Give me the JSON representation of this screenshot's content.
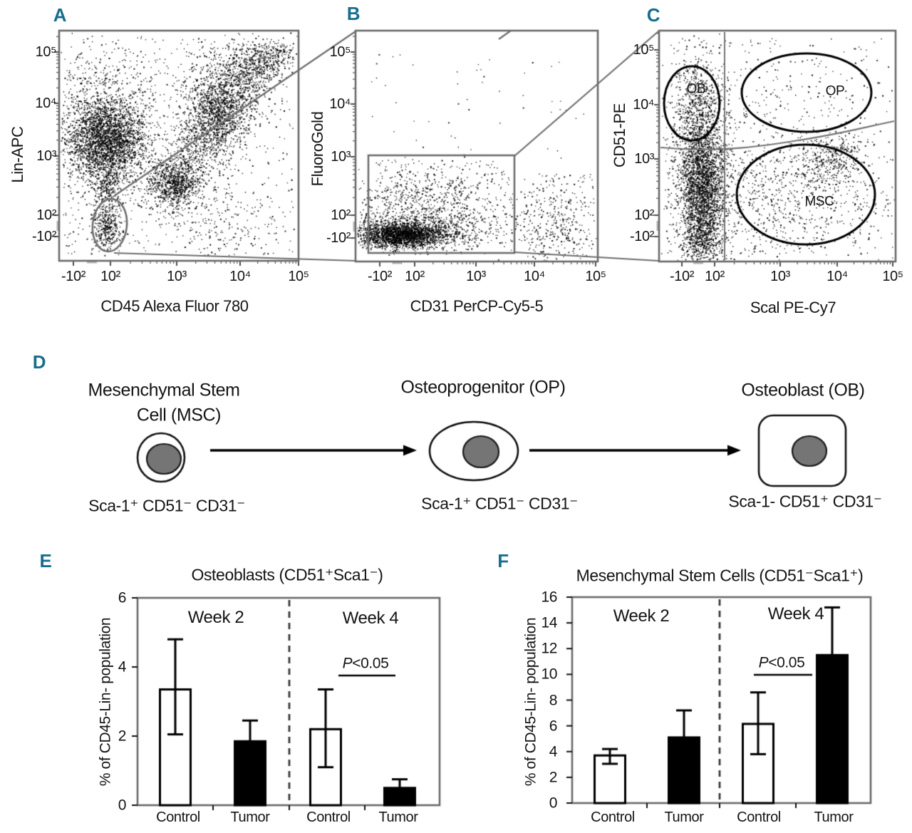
{
  "panel_letters": [
    "A",
    "B",
    "C",
    "D",
    "E",
    "F"
  ],
  "accent_color": "#176e8e",
  "chart_data": [
    {
      "panel": "A",
      "type": "scatter",
      "x_axis": "CD45 Alexa Fluor 780",
      "y_axis": "Lin-APC",
      "x_ticks": [
        "-10²",
        "10²",
        "10³",
        "10⁴",
        "10⁵"
      ],
      "y_ticks": [
        "10⁵",
        "10⁴",
        "10³",
        "10²",
        "-10²"
      ],
      "gate": "sort-gate ellipse on CD45- Lin- cells (lower left)",
      "clusters": [
        {
          "kind": "gauss",
          "n": 2600,
          "cx": 0.199,
          "cy": 0.529,
          "sx": 0.077,
          "sy": 0.087
        },
        {
          "kind": "gauss",
          "n": 700,
          "cx": 0.199,
          "cy": 0.529,
          "sx": 0.155,
          "sy": 0.17
        },
        {
          "kind": "band",
          "n": 280,
          "x0": 0.193,
          "y0": 0.396,
          "x1": 0.202,
          "y1": 0.179,
          "w": 0.03
        },
        {
          "kind": "gauss",
          "n": 260,
          "cx": 0.16,
          "cy": 0.75,
          "sx": 0.12,
          "sy": 0.12
        },
        {
          "kind": "band",
          "n": 1000,
          "x0": 0.432,
          "y0": 0.288,
          "x1": 0.78,
          "y1": 0.814,
          "w": 0.055
        },
        {
          "kind": "gauss",
          "n": 700,
          "cx": 0.488,
          "cy": 0.337,
          "sx": 0.054,
          "sy": 0.05
        },
        {
          "kind": "gauss",
          "n": 1200,
          "cx": 0.661,
          "cy": 0.669,
          "sx": 0.077,
          "sy": 0.105
        },
        {
          "kind": "gauss",
          "n": 500,
          "cx": 0.81,
          "cy": 0.839,
          "sx": 0.071,
          "sy": 0.056
        },
        {
          "kind": "band",
          "n": 160,
          "x0": 0.848,
          "y0": 0.861,
          "x1": 0.952,
          "y1": 0.923,
          "w": 0.03
        },
        {
          "kind": "gauss",
          "n": 300,
          "cx": 0.199,
          "cy": 0.133,
          "sx": 0.03,
          "sy": 0.043
        },
        {
          "kind": "uniform",
          "n": 650,
          "x0": 0.02,
          "y0": 0.03,
          "x1": 0.98,
          "y1": 0.97
        },
        {
          "kind": "gauss",
          "n": 180,
          "cx": 0.685,
          "cy": 0.164,
          "sx": 0.134,
          "sy": 0.093
        }
      ]
    },
    {
      "panel": "B",
      "type": "scatter",
      "x_axis": "CD31 PerCP-Cy5-5",
      "y_axis": "FluoroGold",
      "x_ticks": [
        "-10²",
        "10²",
        "10³",
        "10⁴",
        "10⁵"
      ],
      "y_ticks": [
        "10⁵",
        "10⁴",
        "10³",
        "10²",
        "-10²"
      ],
      "gate": "rectangle gate on CD31- FluoroGold-low cells",
      "clusters": [
        {
          "kind": "gauss",
          "n": 1800,
          "cx": 0.179,
          "cy": 0.114,
          "sx": 0.082,
          "sy": 0.025
        },
        {
          "kind": "gauss",
          "n": 900,
          "cx": 0.253,
          "cy": 0.13,
          "sx": 0.162,
          "sy": 0.04
        },
        {
          "kind": "gauss",
          "n": 650,
          "cx": 0.282,
          "cy": 0.201,
          "sx": 0.182,
          "sy": 0.068
        },
        {
          "kind": "gauss",
          "n": 280,
          "cx": 0.297,
          "cy": 0.315,
          "sx": 0.176,
          "sy": 0.056
        },
        {
          "kind": "uniform",
          "n": 80,
          "x0": 0.074,
          "y0": 0.336,
          "x1": 0.632,
          "y1": 0.444
        },
        {
          "kind": "gauss",
          "n": 280,
          "cx": 0.826,
          "cy": 0.139,
          "sx": 0.097,
          "sy": 0.086
        },
        {
          "kind": "uniform",
          "n": 140,
          "x0": 0.691,
          "y0": 0.012,
          "x1": 0.985,
          "y1": 0.383
        },
        {
          "kind": "uniform",
          "n": 50,
          "x0": 0.06,
          "y0": 0.45,
          "x1": 0.94,
          "y1": 0.92
        }
      ]
    },
    {
      "panel": "C",
      "type": "scatter",
      "x_axis": "Scal PE-Cy7",
      "y_axis": "CD51-PE",
      "x_ticks": [
        "-10²",
        "10²",
        "10³",
        "10⁴",
        "10⁵"
      ],
      "y_ticks": [
        "10⁵",
        "10⁴",
        "10³",
        "10²",
        "-10²"
      ],
      "gate_labels": [
        "OB",
        "OP",
        "MSC"
      ],
      "clusters": [
        {
          "kind": "gauss",
          "n": 1600,
          "cx": 0.181,
          "cy": 0.253,
          "sx": 0.045,
          "sy": 0.117
        },
        {
          "kind": "gauss",
          "n": 1000,
          "cx": 0.175,
          "cy": 0.469,
          "sx": 0.051,
          "sy": 0.123
        },
        {
          "kind": "gauss",
          "n": 450,
          "cx": 0.16,
          "cy": 0.685,
          "sx": 0.054,
          "sy": 0.108
        },
        {
          "kind": "gauss",
          "n": 600,
          "cx": 0.181,
          "cy": 0.352,
          "sx": 0.084,
          "sy": 0.262
        },
        {
          "kind": "gauss",
          "n": 250,
          "cx": 0.181,
          "cy": 0.074,
          "sx": 0.054,
          "sy": 0.037
        },
        {
          "kind": "gauss",
          "n": 550,
          "cx": 0.648,
          "cy": 0.268,
          "sx": 0.211,
          "sy": 0.139
        },
        {
          "kind": "gauss",
          "n": 350,
          "cx": 0.723,
          "cy": 0.454,
          "sx": 0.072,
          "sy": 0.056
        },
        {
          "kind": "gauss",
          "n": 280,
          "cx": 0.407,
          "cy": 0.346,
          "sx": 0.114,
          "sy": 0.17
        },
        {
          "kind": "gauss",
          "n": 130,
          "cx": 0.617,
          "cy": 0.731,
          "sx": 0.226,
          "sy": 0.117
        },
        {
          "kind": "uniform",
          "n": 280,
          "x0": 0.03,
          "y0": 0.03,
          "x1": 0.97,
          "y1": 0.97
        }
      ]
    },
    {
      "panel": "E",
      "type": "bar",
      "title": "Osteoblasts (CD51⁺Sca1⁻)",
      "ylabel": "% of CD45-Lin- population",
      "ylim": [
        0,
        6
      ],
      "yticks": [
        0,
        2,
        4,
        6
      ],
      "groups": [
        {
          "label": "Week 2",
          "bars": [
            {
              "label": "Control",
              "value": 3.35,
              "err_low": 2.05,
              "err_high": 4.8,
              "fill": "#ffffff"
            },
            {
              "label": "Tumor",
              "value": 1.85,
              "err_high": 2.45,
              "fill": "#000000"
            }
          ]
        },
        {
          "label": "Week 4",
          "bars": [
            {
              "label": "Control",
              "value": 2.2,
              "err_low": 1.1,
              "err_high": 3.35,
              "fill": "#ffffff"
            },
            {
              "label": "Tumor",
              "value": 0.5,
              "err_high": 0.75,
              "fill": "#000000"
            }
          ]
        }
      ],
      "significance": {
        "p": "P",
        "rest": "<0.05",
        "over_group": "Week 4"
      }
    },
    {
      "panel": "F",
      "type": "bar",
      "title": "Mesenchymal Stem Cells (CD51⁻Sca1⁺)",
      "ylabel": "% of CD45-Lin- population",
      "ylim": [
        0,
        16
      ],
      "yticks": [
        0,
        2,
        4,
        6,
        8,
        10,
        12,
        14,
        16
      ],
      "groups": [
        {
          "label": "Week 2",
          "bars": [
            {
              "label": "Control",
              "value": 3.7,
              "err_low": 3.05,
              "err_high": 4.2,
              "fill": "#ffffff"
            },
            {
              "label": "Tumor",
              "value": 5.1,
              "err_high": 7.2,
              "fill": "#000000"
            }
          ]
        },
        {
          "label": "Week 4",
          "bars": [
            {
              "label": "Control",
              "value": 6.15,
              "err_low": 3.8,
              "err_high": 8.6,
              "fill": "#ffffff"
            },
            {
              "label": "Tumor",
              "value": 11.5,
              "err_high": 15.2,
              "fill": "#000000"
            }
          ]
        }
      ],
      "significance": {
        "p": "P",
        "rest": "<0.05",
        "over_group": "Week 4"
      }
    }
  ],
  "diagram": {
    "nucleus_color": "#757575",
    "cells": [
      {
        "title_lines": [
          "Mesenchymal Stem",
          "Cell (MSC)"
        ],
        "markers": "Sca-1⁺ CD51⁻ CD31⁻",
        "shape": "circle"
      },
      {
        "title_lines": [
          "Osteoprogenitor (OP)"
        ],
        "markers": "Sca-1⁺ CD51⁻ CD31⁻",
        "shape": "ellipse"
      },
      {
        "title_lines": [
          "Osteoblast (OB)"
        ],
        "markers": "Sca-1- CD51⁺ CD31⁻",
        "shape": "rounded-square"
      }
    ]
  }
}
